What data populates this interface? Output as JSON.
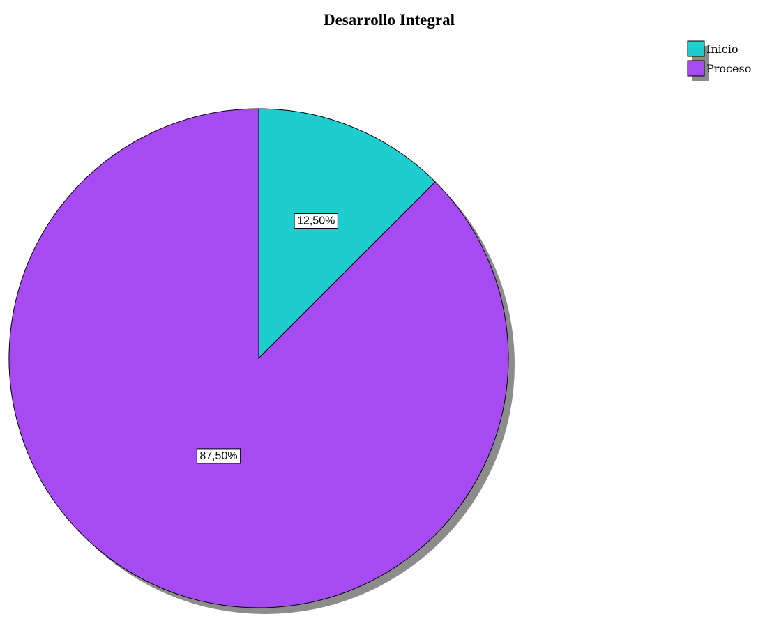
{
  "chart_data": {
    "type": "pie",
    "title": "Desarrollo Integral",
    "slices": [
      {
        "label": "Inicio",
        "value": 12.5,
        "display": "12,50%",
        "color": "#1ecdcd"
      },
      {
        "label": "Proceso",
        "value": 87.5,
        "display": "87,50%",
        "color": "#a64bf2"
      }
    ],
    "legend_position": "top-right",
    "start_angle": "12 o'clock",
    "direction": "clockwise"
  }
}
